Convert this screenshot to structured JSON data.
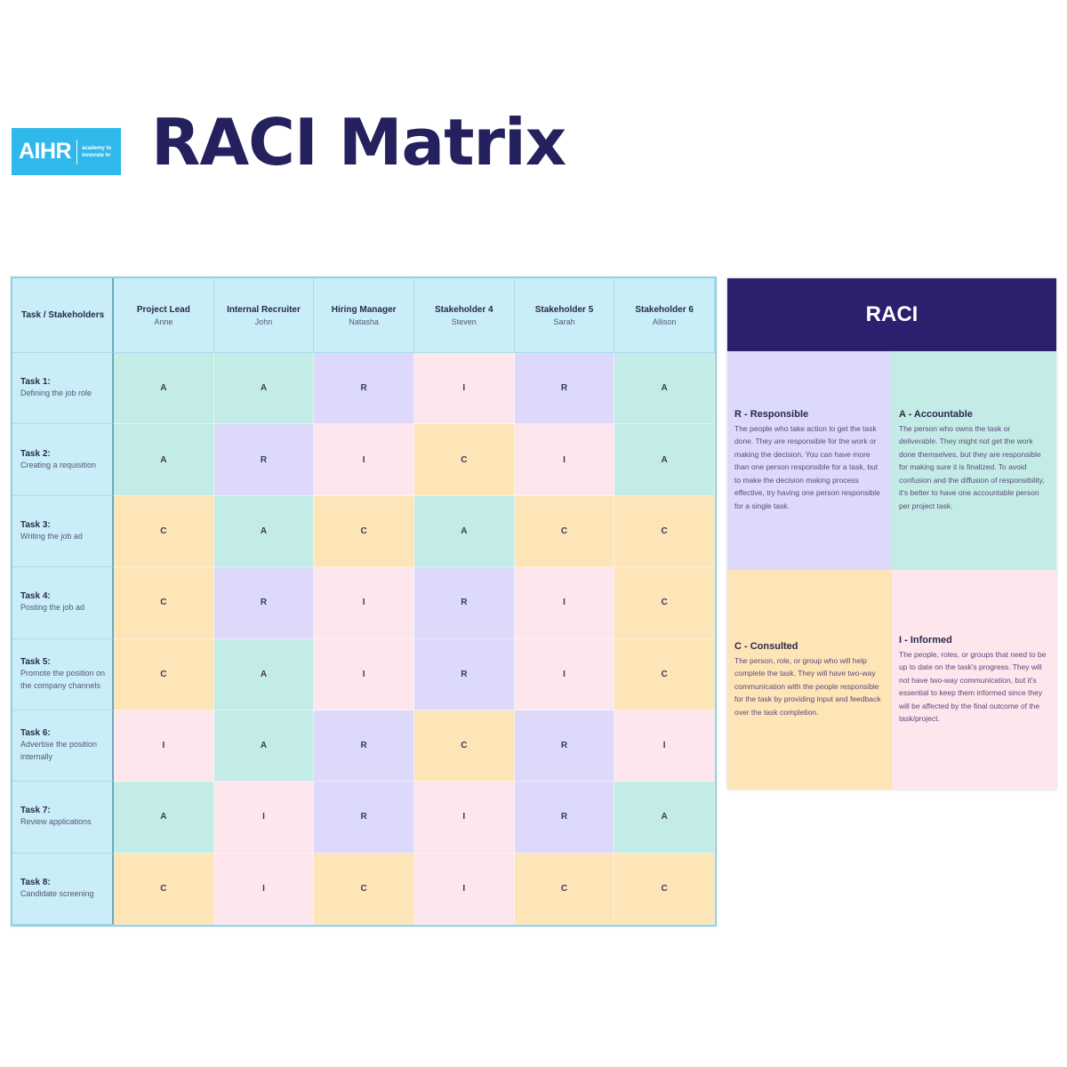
{
  "header": {
    "logo_text": "AIHR",
    "logo_tagline": "academy to innovate hr",
    "title": "RACI Matrix"
  },
  "matrix": {
    "corner_label": "Task / Stakeholders",
    "stakeholders": [
      {
        "role": "Project Lead",
        "name": "Anne"
      },
      {
        "role": "Internal Recruiter",
        "name": "John"
      },
      {
        "role": "Hiring Manager",
        "name": "Natasha"
      },
      {
        "role": "Stakeholder 4",
        "name": "Steven"
      },
      {
        "role": "Stakeholder 5",
        "name": "Sarah"
      },
      {
        "role": "Stakeholder 6",
        "name": "Allison"
      }
    ],
    "tasks": [
      {
        "num": "Task 1:",
        "desc": "Defining the job role",
        "values": [
          "A",
          "A",
          "R",
          "I",
          "R",
          "A"
        ]
      },
      {
        "num": "Task 2:",
        "desc": "Creating a requisition",
        "values": [
          "A",
          "R",
          "I",
          "C",
          "I",
          "A"
        ]
      },
      {
        "num": "Task 3:",
        "desc": "Writing the job ad",
        "values": [
          "C",
          "A",
          "C",
          "A",
          "C",
          "C"
        ]
      },
      {
        "num": "Task 4:",
        "desc": "Posting the job ad",
        "values": [
          "C",
          "R",
          "I",
          "R",
          "I",
          "C"
        ]
      },
      {
        "num": "Task 5:",
        "desc": "Promote the position on the company channels",
        "values": [
          "C",
          "A",
          "I",
          "R",
          "I",
          "C"
        ]
      },
      {
        "num": "Task 6:",
        "desc": "Advertise the position internally",
        "values": [
          "I",
          "A",
          "R",
          "C",
          "R",
          "I"
        ]
      },
      {
        "num": "Task 7:",
        "desc": "Review applications",
        "values": [
          "A",
          "I",
          "R",
          "I",
          "R",
          "A"
        ]
      },
      {
        "num": "Task 8:",
        "desc": "Candidate screening",
        "values": [
          "C",
          "I",
          "C",
          "I",
          "C",
          "C"
        ]
      }
    ]
  },
  "legend": {
    "title": "RACI",
    "items": [
      {
        "key": "R",
        "title": "R - Responsible",
        "text": "The people who take action to get the task done. They are responsible for the work or making the decision. You can have more than one person responsible for a task, but to make the decision making process effective, try having one person responsible for a single task."
      },
      {
        "key": "A",
        "title": "A - Accountable",
        "text": "The person who owns the task or deliverable. They might not get the work done themselves, but they are responsible for making sure it is finalized. To avoid confusion and the diffusion of responsibility, it's better to have one accountable person per project task."
      },
      {
        "key": "C",
        "title": "C - Consulted",
        "text": "The person, role, or group who will help complete the task. They will have two-way communication with the people responsible for the task by providing input and feedback over the task completion."
      },
      {
        "key": "I",
        "title": "I - Informed",
        "text": "The people, roles, or groups that need to be up to date on the task's progress. They will not have two-way communication, but it's essential to keep them informed since they will be affected by the final outcome of the task/project."
      }
    ]
  },
  "colors": {
    "A": "#c4ece6",
    "R": "#dcd9fb",
    "I": "#fde6ec",
    "C": "#fde5b7",
    "header_bg": "#c9eef8",
    "legend_head": "#2b1f6e",
    "title_color": "#24215e",
    "logo_bg": "#2fb8ea"
  }
}
